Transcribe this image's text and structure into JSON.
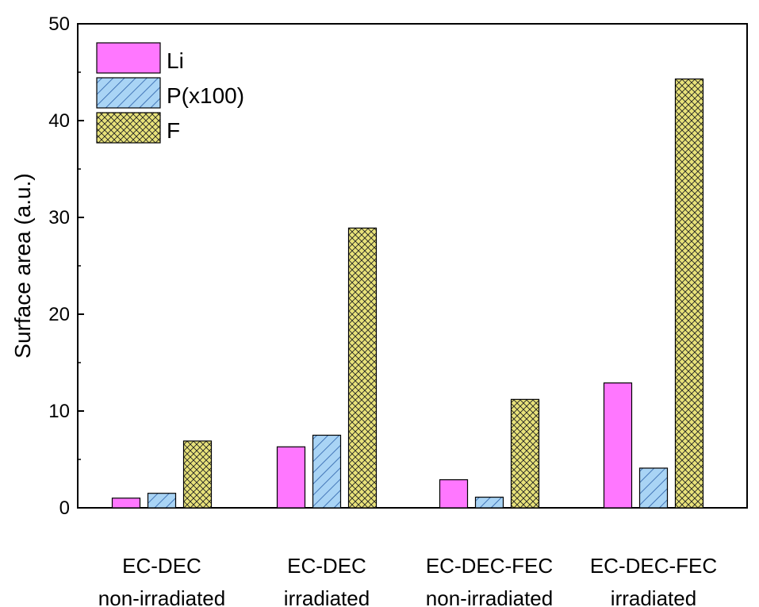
{
  "chart_data": {
    "type": "bar",
    "categories": [
      [
        "EC-DEC",
        "non-irradiated"
      ],
      [
        "EC-DEC",
        "irradiated"
      ],
      [
        "EC-DEC-FEC",
        "non-irradiated"
      ],
      [
        "EC-DEC-FEC",
        "irradiated"
      ]
    ],
    "series": [
      {
        "name": "Li",
        "values": [
          1.0,
          6.3,
          2.9,
          12.9
        ],
        "color": "#ff77ff",
        "pattern": "solid"
      },
      {
        "name": "P(x100)",
        "values": [
          1.5,
          7.5,
          1.1,
          4.1
        ],
        "color": "#a9d4f5",
        "pattern": "diagonal-hatch"
      },
      {
        "name": "F",
        "values": [
          6.9,
          28.9,
          11.2,
          44.3
        ],
        "color": "#e8e27a",
        "pattern": "crosshatch"
      }
    ],
    "title": "",
    "xlabel": "",
    "ylabel": "Surface area (a.u.)",
    "ylim": [
      0,
      50
    ],
    "yticks": [
      0,
      10,
      20,
      30,
      40,
      50
    ],
    "legend_position": "top-left",
    "grid": false
  }
}
